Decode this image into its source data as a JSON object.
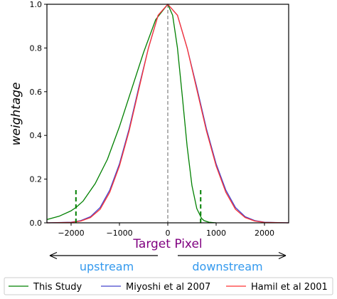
{
  "chart_data": {
    "type": "line",
    "xlabel": "Target Pixel",
    "ylabel": "weightage",
    "xlim": [
      -2500,
      2500
    ],
    "ylim": [
      0.0,
      1.0
    ],
    "xticks": [
      -2000,
      -1000,
      0,
      1000,
      2000
    ],
    "xtick_labels": [
      "−2000",
      "−1000",
      "0",
      "1000",
      "2000"
    ],
    "yticks": [
      0.0,
      0.2,
      0.4,
      0.6,
      0.8,
      1.0
    ],
    "ytick_labels": [
      "0.0",
      "0.2",
      "0.4",
      "0.6",
      "0.8",
      "1.0"
    ],
    "grid": false,
    "legend_position": "bottom",
    "series": [
      {
        "name": "This Study",
        "color": "#008000",
        "x": [
          -2500,
          -2250,
          -2000,
          -1900,
          -1750,
          -1500,
          -1250,
          -1000,
          -750,
          -500,
          -250,
          0,
          100,
          200,
          300,
          400,
          500,
          600,
          700,
          750,
          850,
          1000
        ],
        "y": [
          0.015,
          0.03,
          0.055,
          0.07,
          0.1,
          0.18,
          0.29,
          0.44,
          0.61,
          0.78,
          0.93,
          1.0,
          0.95,
          0.8,
          0.58,
          0.35,
          0.17,
          0.065,
          0.02,
          0.01,
          0.003,
          0.0
        ]
      },
      {
        "name": "Miyoshi et al 2007",
        "color": "#4444cc",
        "x": [
          -2500,
          -2000,
          -1800,
          -1600,
          -1400,
          -1200,
          -1000,
          -800,
          -600,
          -400,
          -200,
          0,
          200,
          400,
          600,
          800,
          1000,
          1200,
          1400,
          1600,
          1800,
          2000,
          2500
        ],
        "y": [
          0.0,
          0.003,
          0.01,
          0.028,
          0.07,
          0.15,
          0.27,
          0.43,
          0.62,
          0.8,
          0.95,
          1.0,
          0.95,
          0.8,
          0.62,
          0.43,
          0.27,
          0.15,
          0.07,
          0.028,
          0.01,
          0.003,
          0.0
        ]
      },
      {
        "name": "Hamil et al 2001",
        "color": "#ff3333",
        "x": [
          -2500,
          -2000,
          -1800,
          -1600,
          -1400,
          -1200,
          -1000,
          -800,
          -600,
          -400,
          -200,
          0,
          200,
          400,
          600,
          800,
          1000,
          1200,
          1400,
          1600,
          1800,
          2000,
          2500
        ],
        "y": [
          0.0,
          0.002,
          0.008,
          0.024,
          0.062,
          0.14,
          0.26,
          0.42,
          0.61,
          0.8,
          0.95,
          1.0,
          0.95,
          0.8,
          0.61,
          0.42,
          0.26,
          0.14,
          0.062,
          0.024,
          0.008,
          0.002,
          0.0
        ]
      }
    ],
    "annotations": {
      "center_line": {
        "x": 0,
        "color": "#808080"
      },
      "markers": [
        {
          "x": -1900,
          "y_top": 0.15,
          "color": "#008000"
        },
        {
          "x": 680,
          "y_top": 0.15,
          "color": "#008000"
        }
      ],
      "direction_labels": [
        {
          "text": "upstream",
          "color": "#3399ee",
          "direction": "left"
        },
        {
          "text": "downstream",
          "color": "#3399ee",
          "direction": "right"
        }
      ]
    }
  }
}
